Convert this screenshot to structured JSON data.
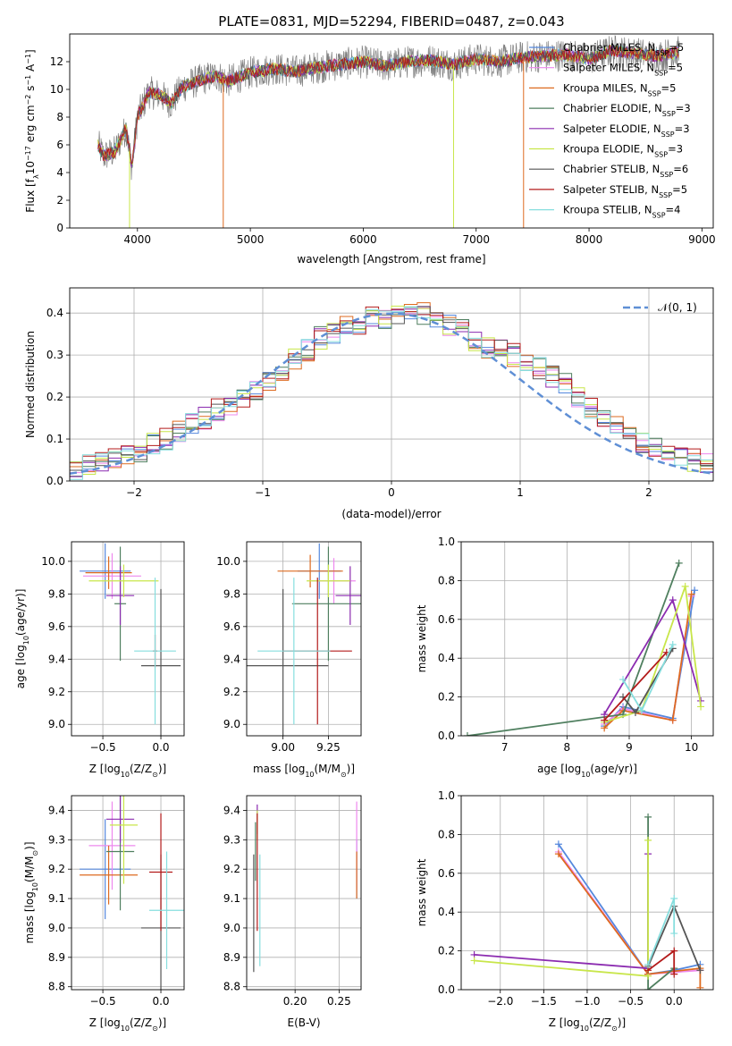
{
  "figure_title": "PLATE=0831, MJD=52294, FIBERID=0487, z=0.043",
  "colors": {
    "chabrier_miles": "#5588dd",
    "salpeter_miles": "#ee88ee",
    "kroupa_miles": "#dd6a1f",
    "chabrier_elodie": "#4f7f5f",
    "salpeter_elodie": "#8b2bb0",
    "kroupa_elodie": "#c8e64a",
    "chabrier_stelib": "#555555",
    "salpeter_stelib": "#b31b1b",
    "kroupa_stelib": "#86dede",
    "data": "#7f7f7f",
    "normal": "#5f8fd5"
  },
  "chart_data": [
    {
      "type": "line",
      "id": "spectrum",
      "xlabel": "wavelength [Angstrom, rest frame]",
      "ylabel": "Flux [f",
      "ylabel_rest": "10",
      "ylabel_sup": "−17",
      "ylabel_units": " erg cm",
      "ylabel_sup2": "−2",
      "ylabel_units2": " s",
      "ylabel_sup3": "−1",
      "ylabel_units3": " A",
      "ylabel_sup4": "−1",
      "ylabel_end": "]",
      "xlim": [
        3400,
        9100
      ],
      "ylim": [
        0,
        14
      ],
      "xticks": [
        4000,
        5000,
        6000,
        7000,
        8000,
        9000
      ],
      "yticks": [
        0,
        2,
        4,
        6,
        8,
        10,
        12
      ],
      "x": [
        3650,
        3700,
        3800,
        3900,
        3950,
        4000,
        4100,
        4200,
        4300,
        4400,
        4500,
        4600,
        4700,
        4800,
        4900,
        5000,
        5200,
        5400,
        5600,
        5800,
        6000,
        6200,
        6400,
        6600,
        6800,
        7000,
        7200,
        7400,
        7600,
        7800,
        8000,
        8200,
        8400,
        8600,
        8800
      ],
      "y": [
        6.0,
        5.2,
        5.5,
        7.2,
        4.4,
        8.0,
        9.8,
        9.6,
        9.0,
        10.2,
        10.5,
        10.8,
        11.0,
        10.6,
        10.9,
        11.2,
        11.5,
        11.3,
        11.6,
        11.8,
        12.0,
        11.7,
        12.0,
        12.1,
        11.8,
        12.2,
        12.0,
        12.3,
        12.4,
        12.5,
        12.2,
        12.8,
        12.6,
        12.4,
        12.7
      ],
      "legend_labels": [
        "Chabrier MILES, N",
        "Salpeter MILES, N",
        "Kroupa MILES, N",
        "Chabrier ELODIE, N",
        "Salpeter ELODIE, N",
        "Kroupa ELODIE, N",
        "Chabrier STELIB, N",
        "Salpeter STELIB, N",
        "Kroupa STELIB, N"
      ],
      "legend_sub": "SSP",
      "legend_values": [
        "=5",
        "=5",
        "=5",
        "=3",
        "=3",
        "=3",
        "=6",
        "=5",
        "=4"
      ]
    },
    {
      "type": "line",
      "id": "residuals",
      "xlabel": "(data-model)/error",
      "ylabel": "Normed distribution",
      "xlim": [
        -2.5,
        2.5
      ],
      "ylim": [
        0,
        0.46
      ],
      "xticks": [
        -2,
        -1,
        0,
        1,
        2
      ],
      "xtick_labels": [
        "−2",
        "−1",
        "0",
        "1",
        "2"
      ],
      "yticks": [
        0.0,
        0.1,
        0.2,
        0.3,
        0.4
      ],
      "ytick_labels": [
        "0.0",
        "0.1",
        "0.2",
        "0.3",
        "0.4"
      ],
      "legend_label": "𝒩(0, 1)",
      "bin_width": 0.1,
      "bin_start": -2.5,
      "hist_base": [
        0.03,
        0.04,
        0.04,
        0.05,
        0.06,
        0.07,
        0.09,
        0.1,
        0.12,
        0.14,
        0.15,
        0.17,
        0.18,
        0.2,
        0.21,
        0.24,
        0.26,
        0.29,
        0.31,
        0.34,
        0.35,
        0.37,
        0.36,
        0.39,
        0.38,
        0.4,
        0.41,
        0.4,
        0.39,
        0.37,
        0.36,
        0.33,
        0.32,
        0.31,
        0.3,
        0.28,
        0.27,
        0.25,
        0.23,
        0.2,
        0.17,
        0.15,
        0.13,
        0.11,
        0.09,
        0.08,
        0.07,
        0.06,
        0.05,
        0.04
      ]
    },
    {
      "type": "scatter",
      "id": "age_vs_Z",
      "xlabel": "Z [log",
      "xlabel_sub": "10",
      "xlabel_rest": "(Z/Z",
      "xlabel_sun": "⊙",
      "xlabel_end": ")]",
      "ylabel": "age  [log",
      "ylabel_sub": "10",
      "ylabel_rest": "(age/yr)]",
      "xlim": [
        -0.77,
        0.2
      ],
      "ylim": [
        8.93,
        10.12
      ],
      "xticks": [
        -0.5,
        0.0
      ],
      "xtick_labels": [
        "−0.5",
        "0.0"
      ],
      "yticks": [
        9.0,
        9.2,
        9.4,
        9.6,
        9.8,
        10.0
      ],
      "ytick_labels": [
        "9.0",
        "9.2",
        "9.4",
        "9.6",
        "9.8",
        "10.0"
      ],
      "points": [
        {
          "x": -0.48,
          "y": 9.94,
          "xerr": 0.22,
          "yerr": 0.17
        },
        {
          "x": -0.42,
          "y": 9.91,
          "xerr": 0.25,
          "yerr": 0.14
        },
        {
          "x": -0.45,
          "y": 9.93,
          "xerr": 0.2,
          "yerr": 0.1
        },
        {
          "x": -0.35,
          "y": 9.74,
          "xerr": 0.05,
          "yerr": 0.35
        },
        {
          "x": -0.35,
          "y": 9.79,
          "xerr": 0.12,
          "yerr": 0.18
        },
        {
          "x": -0.32,
          "y": 9.88,
          "xerr": 0.3,
          "yerr": 0.1
        },
        {
          "x": 0.0,
          "y": 9.36,
          "xerr": 0.17,
          "yerr": 0.47
        },
        {
          "x": -0.05,
          "y": 9.45,
          "xerr": 0.02,
          "yerr": 0.1
        },
        {
          "x": -0.05,
          "y": 9.45,
          "xerr": 0.18,
          "yerr": 0.45
        }
      ]
    },
    {
      "type": "scatter",
      "id": "age_vs_mass",
      "xlabel": "mass [log",
      "xlabel_sub": "10",
      "xlabel_rest": "(M/M",
      "xlabel_sun": "⊙",
      "xlabel_end": ")]",
      "xlim": [
        8.8,
        9.43
      ],
      "ylim": [
        8.93,
        10.12
      ],
      "xticks": [
        9.0,
        9.25
      ],
      "xtick_labels": [
        "9.00",
        "9.25"
      ],
      "yticks": [
        9.0,
        9.2,
        9.4,
        9.6,
        9.8,
        10.0
      ],
      "ytick_labels": [
        "9.0",
        "9.2",
        "9.4",
        "9.6",
        "9.8",
        "10.0"
      ],
      "points": [
        {
          "x": 9.2,
          "y": 9.94,
          "xerr": 0.12,
          "yerr": 0.17
        },
        {
          "x": 9.28,
          "y": 9.88,
          "xerr": 0.12,
          "yerr": 0.14
        },
        {
          "x": 9.15,
          "y": 9.94,
          "xerr": 0.18,
          "yerr": 0.1
        },
        {
          "x": 9.25,
          "y": 9.74,
          "xerr": 0.2,
          "yerr": 0.35
        },
        {
          "x": 9.37,
          "y": 9.79,
          "xerr": 0.08,
          "yerr": 0.18
        },
        {
          "x": 9.25,
          "y": 9.88,
          "xerr": 0.12,
          "yerr": 0.1
        },
        {
          "x": 9.0,
          "y": 9.36,
          "xerr": 0.25,
          "yerr": 0.47
        },
        {
          "x": 9.19,
          "y": 9.45,
          "xerr": 0.19,
          "yerr": 0.45
        },
        {
          "x": 9.06,
          "y": 9.45,
          "xerr": 0.2,
          "yerr": 0.45
        }
      ]
    },
    {
      "type": "line",
      "id": "mass_weight_vs_age",
      "xlabel": "age  [log",
      "xlabel_sub": "10",
      "xlabel_rest": "(age/yr)]",
      "ylabel": "mass weight",
      "xlim": [
        6.3,
        10.35
      ],
      "ylim": [
        0,
        1.0
      ],
      "xticks": [
        7,
        8,
        9,
        10
      ],
      "yticks": [
        0.0,
        0.2,
        0.4,
        0.6,
        0.8,
        1.0
      ],
      "ytick_labels": [
        "0.0",
        "0.2",
        "0.4",
        "0.6",
        "0.8",
        "1.0"
      ],
      "series": [
        {
          "x": [
            8.6,
            8.9,
            9.7,
            10.05
          ],
          "y": [
            0.05,
            0.15,
            0.09,
            0.75
          ]
        },
        {
          "x": [
            8.6,
            8.9,
            9.7,
            10.0
          ],
          "y": [
            0.06,
            0.14,
            0.08,
            0.72
          ]
        },
        {
          "x": [
            8.6,
            8.9,
            9.7,
            10.0
          ],
          "y": [
            0.04,
            0.13,
            0.08,
            0.73
          ]
        },
        {
          "x": [
            6.4,
            8.9,
            9.8
          ],
          "y": [
            0.0,
            0.11,
            0.89
          ]
        },
        {
          "x": [
            8.6,
            9.7,
            10.15
          ],
          "y": [
            0.11,
            0.7,
            0.18
          ]
        },
        {
          "x": [
            8.6,
            9.2,
            9.9,
            10.15
          ],
          "y": [
            0.07,
            0.13,
            0.77,
            0.15
          ]
        },
        {
          "x": [
            8.9,
            9.1,
            9.7
          ],
          "y": [
            0.2,
            0.12,
            0.45
          ]
        },
        {
          "x": [
            8.6,
            9.6
          ],
          "y": [
            0.08,
            0.43
          ]
        },
        {
          "x": [
            8.9,
            9.2,
            9.7
          ],
          "y": [
            0.29,
            0.13,
            0.47
          ]
        }
      ]
    },
    {
      "type": "scatter",
      "id": "mass_vs_Z",
      "xlabel": "Z [log",
      "xlabel_sub": "10",
      "xlabel_rest": "(Z/Z",
      "xlabel_sun": "⊙",
      "xlabel_end": ")]",
      "ylabel": "mass [log",
      "ylabel_sub": "10",
      "ylabel_rest": "(M/M",
      "ylabel_sun": "⊙",
      "ylabel_end": ")]",
      "xlim": [
        -0.77,
        0.2
      ],
      "ylim": [
        8.79,
        9.45
      ],
      "xticks": [
        -0.5,
        0.0
      ],
      "xtick_labels": [
        "−0.5",
        "0.0"
      ],
      "yticks": [
        8.8,
        8.9,
        9.0,
        9.1,
        9.2,
        9.3,
        9.4
      ],
      "ytick_labels": [
        "8.8",
        "8.9",
        "9.0",
        "9.1",
        "9.2",
        "9.3",
        "9.4"
      ],
      "points": [
        {
          "x": -0.48,
          "y": 9.2,
          "xerr": 0.22,
          "yerr": 0.17
        },
        {
          "x": -0.42,
          "y": 9.28,
          "xerr": 0.2,
          "yerr": 0.15
        },
        {
          "x": -0.45,
          "y": 9.18,
          "xerr": 0.25,
          "yerr": 0.1
        },
        {
          "x": -0.35,
          "y": 9.26,
          "xerr": 0.12,
          "yerr": 0.2
        },
        {
          "x": -0.35,
          "y": 9.37,
          "xerr": 0.12,
          "yerr": 0.08
        },
        {
          "x": -0.32,
          "y": 9.35,
          "xerr": 0.12,
          "yerr": 0.2
        },
        {
          "x": 0.0,
          "y": 9.0,
          "xerr": 0.17,
          "yerr": 0.25
        },
        {
          "x": 0.0,
          "y": 9.19,
          "xerr": 0.1,
          "yerr": 0.2
        },
        {
          "x": 0.05,
          "y": 9.06,
          "xerr": 0.15,
          "yerr": 0.2
        }
      ]
    },
    {
      "type": "scatter",
      "id": "mass_vs_ebv",
      "xlabel": "E(B-V)",
      "xlim": [
        0.145,
        0.275
      ],
      "ylim": [
        8.79,
        9.45
      ],
      "xticks": [
        0.2,
        0.25
      ],
      "xtick_labels": [
        "0.20",
        "0.25"
      ],
      "yticks": [
        8.8,
        8.9,
        9.0,
        9.1,
        9.2,
        9.3,
        9.4
      ],
      "ytick_labels": [
        "8.8",
        "8.9",
        "9.0",
        "9.1",
        "9.2",
        "9.3",
        "9.4"
      ],
      "points": [
        {
          "x": 0.27,
          "y": 9.2,
          "yerr": 0.1
        },
        {
          "x": 0.27,
          "y": 9.28,
          "yerr": 0.15
        },
        {
          "x": 0.27,
          "y": 9.18,
          "yerr": 0.08
        },
        {
          "x": 0.155,
          "y": 9.26,
          "yerr": 0.1
        },
        {
          "x": 0.157,
          "y": 9.37,
          "yerr": 0.05
        },
        {
          "x": 0.157,
          "y": 9.35,
          "yerr": 0.05
        },
        {
          "x": 0.153,
          "y": 9.05,
          "yerr": 0.2
        },
        {
          "x": 0.157,
          "y": 9.19,
          "yerr": 0.2
        },
        {
          "x": 0.16,
          "y": 9.06,
          "yerr": 0.19
        }
      ]
    },
    {
      "type": "line",
      "id": "mass_weight_vs_Z",
      "xlabel": "Z [log",
      "xlabel_sub": "10",
      "xlabel_rest": "(Z/Z",
      "xlabel_sun": "⊙",
      "xlabel_end": ")]",
      "ylabel": "mass weight",
      "xlim": [
        -2.45,
        0.45
      ],
      "ylim": [
        0,
        1.0
      ],
      "xticks": [
        -2.0,
        -1.5,
        -1.0,
        -0.5,
        0.0
      ],
      "xtick_labels": [
        "−2.0",
        "−1.5",
        "−1.0",
        "−0.5",
        "0.0"
      ],
      "yticks": [
        0.0,
        0.2,
        0.4,
        0.6,
        0.8,
        1.0
      ],
      "ytick_labels": [
        "0.0",
        "0.2",
        "0.4",
        "0.6",
        "0.8",
        "1.0"
      ],
      "series": [
        {
          "x": [
            -1.33,
            -0.3,
            0.0,
            0.3
          ],
          "y": [
            0.75,
            0.08,
            0.1,
            0.13
          ]
        },
        {
          "x": [
            -1.33,
            -0.3,
            0.3
          ],
          "y": [
            0.71,
            0.08,
            0.1
          ]
        },
        {
          "x": [
            -1.33,
            -0.3,
            0.3,
            0.3
          ],
          "y": [
            0.7,
            0.08,
            0.11,
            0.01
          ]
        },
        {
          "x": [
            -0.3,
            -0.3,
            0.0
          ],
          "y": [
            0.89,
            0.0,
            0.11
          ]
        },
        {
          "x": [
            -2.3,
            -0.3,
            -0.3
          ],
          "y": [
            0.18,
            0.11,
            0.7
          ]
        },
        {
          "x": [
            -2.3,
            -0.3,
            -0.3
          ],
          "y": [
            0.15,
            0.07,
            0.77
          ]
        },
        {
          "x": [
            -0.3,
            0.0,
            0.3
          ],
          "y": [
            0.12,
            0.43,
            0.1
          ]
        },
        {
          "x": [
            -0.3,
            0.0,
            0.0
          ],
          "y": [
            0.1,
            0.2,
            0.08
          ]
        },
        {
          "x": [
            -0.3,
            0.0,
            0.0
          ],
          "y": [
            0.13,
            0.47,
            0.29
          ]
        }
      ]
    }
  ]
}
